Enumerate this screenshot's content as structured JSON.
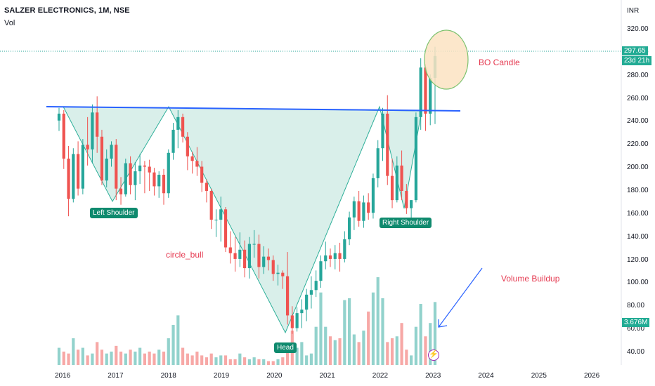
{
  "header": {
    "title": "SALZER ELECTRONICS, 1M, NSE",
    "volume_label": "Vol",
    "currency": "INR"
  },
  "price_badge": {
    "price": "297.65",
    "countdown": "23d 21h"
  },
  "volume_badge": "3.676M",
  "colors": {
    "up": "#26a69a",
    "down": "#ef5350",
    "up_vol": "#92d2cc",
    "down_vol": "#f7a8a6",
    "neckline": "#2962ff",
    "pattern_fill": "#d8efe9",
    "pattern_line": "#22ab94",
    "label_bg": "#0f8a6e",
    "annotation": "#e5384f",
    "circle_fill": "#fce3c2",
    "circle_border": "#7cc26e",
    "arrow": "#2962ff"
  },
  "chart_data": {
    "type": "candlestick",
    "x_axis": {
      "labels": [
        "2016",
        "2017",
        "2018",
        "2019",
        "2020",
        "2021",
        "2022",
        "2023",
        "2024",
        "2025",
        "2026"
      ]
    },
    "y_axis": {
      "ticks": [
        "320.00",
        "300.00",
        "280.00",
        "260.00",
        "240.00",
        "220.00",
        "200.00",
        "180.00",
        "160.00",
        "140.00",
        "120.00",
        "100.00",
        "80.00",
        "60.00",
        "40.00"
      ],
      "range": [
        30,
        327
      ]
    },
    "series": [
      {
        "values": [
          [
            241,
            252,
            232,
            247
          ],
          [
            247,
            250,
            199,
            208
          ],
          [
            208,
            219,
            158,
            173
          ],
          [
            173,
            217,
            170,
            212
          ],
          [
            212,
            223,
            176,
            182
          ],
          [
            182,
            225,
            177,
            220
          ],
          [
            220,
            244,
            202,
            216
          ],
          [
            216,
            255,
            204,
            248
          ],
          [
            248,
            262,
            213,
            227
          ],
          [
            227,
            233,
            185,
            189
          ],
          [
            189,
            216,
            183,
            208
          ],
          [
            208,
            223,
            201,
            220
          ],
          [
            220,
            225,
            172,
            182
          ],
          [
            182,
            192,
            168,
            177
          ],
          [
            177,
            208,
            175,
            204
          ],
          [
            204,
            210,
            177,
            185
          ],
          [
            185,
            205,
            172,
            197
          ],
          [
            197,
            212,
            186,
            202
          ],
          [
            202,
            206,
            178,
            201
          ],
          [
            201,
            207,
            180,
            196
          ],
          [
            196,
            200,
            176,
            184
          ],
          [
            184,
            197,
            174,
            194
          ],
          [
            194,
            199,
            168,
            178
          ],
          [
            178,
            216,
            174,
            213
          ],
          [
            213,
            239,
            207,
            233
          ],
          [
            233,
            250,
            217,
            244
          ],
          [
            244,
            247,
            222,
            227
          ],
          [
            227,
            231,
            198,
            210
          ],
          [
            210,
            214,
            195,
            206
          ],
          [
            206,
            218,
            193,
            201
          ],
          [
            201,
            206,
            179,
            187
          ],
          [
            187,
            190,
            170,
            180
          ],
          [
            180,
            182,
            147,
            155
          ],
          [
            155,
            164,
            140,
            155
          ],
          [
            155,
            175,
            136,
            164
          ],
          [
            164,
            166,
            127,
            131
          ],
          [
            131,
            145,
            117,
            126
          ],
          [
            126,
            140,
            110,
            121
          ],
          [
            121,
            144,
            114,
            129
          ],
          [
            129,
            137,
            105,
            113
          ],
          [
            113,
            140,
            104,
            134
          ],
          [
            134,
            146,
            122,
            134
          ],
          [
            134,
            142,
            104,
            114
          ],
          [
            114,
            132,
            108,
            123
          ],
          [
            123,
            130,
            111,
            120
          ],
          [
            120,
            124,
            102,
            108
          ],
          [
            108,
            116,
            98,
            109
          ],
          [
            109,
            111,
            95,
            106
          ],
          [
            106,
            127,
            64,
            72
          ],
          [
            72,
            80,
            56,
            61
          ],
          [
            61,
            79,
            58,
            74
          ],
          [
            74,
            86,
            61,
            77
          ],
          [
            77,
            95,
            67,
            90
          ],
          [
            90,
            106,
            78,
            94
          ],
          [
            94,
            111,
            88,
            102
          ],
          [
            102,
            124,
            96,
            119
          ],
          [
            119,
            136,
            112,
            124
          ],
          [
            124,
            130,
            114,
            121
          ],
          [
            121,
            133,
            112,
            126
          ],
          [
            126,
            135,
            110,
            121
          ],
          [
            121,
            145,
            118,
            138
          ],
          [
            138,
            162,
            133,
            157
          ],
          [
            157,
            175,
            146,
            171
          ],
          [
            171,
            180,
            149,
            154
          ],
          [
            154,
            176,
            148,
            170
          ],
          [
            170,
            178,
            155,
            161
          ],
          [
            161,
            195,
            156,
            191
          ],
          [
            191,
            224,
            183,
            217
          ],
          [
            217,
            252,
            206,
            247
          ],
          [
            247,
            263,
            185,
            193
          ],
          [
            193,
            208,
            165,
            172
          ],
          [
            172,
            210,
            170,
            202
          ],
          [
            202,
            215,
            172,
            180
          ],
          [
            180,
            186,
            160,
            165
          ],
          [
            165,
            172,
            156,
            172
          ],
          [
            172,
            248,
            170,
            244
          ],
          [
            244,
            295,
            233,
            287
          ],
          [
            287,
            290,
            232,
            247
          ],
          [
            247,
            281,
            237,
            278
          ],
          [
            278,
            305,
            238,
            297
          ]
        ]
      }
    ],
    "volume": [
      9,
      7,
      6,
      14,
      8,
      9,
      5,
      6,
      12,
      8,
      6,
      7,
      10,
      7,
      6,
      8,
      7,
      9,
      6,
      7,
      6,
      8,
      7,
      14,
      21,
      26,
      9,
      6,
      5,
      7,
      5,
      4,
      6,
      4,
      5,
      5,
      3,
      3,
      6,
      4,
      3,
      4,
      3,
      3,
      2,
      2,
      3,
      4,
      10,
      18,
      9,
      12,
      5,
      6,
      20,
      38,
      20,
      15,
      13,
      14,
      34,
      35,
      16,
      12,
      18,
      28,
      38,
      46,
      35,
      12,
      14,
      15,
      22,
      8,
      5,
      20,
      32,
      15,
      22,
      33
    ]
  },
  "annotations": {
    "left_shoulder": "Left Shoulder",
    "head": "Head",
    "right_shoulder": "Right Shoulder",
    "circle_bull": "circle_bull",
    "bo_candle": "BO Candle",
    "volume_buildup": "Volume Buildup"
  },
  "flash_icon": "lightning-icon"
}
